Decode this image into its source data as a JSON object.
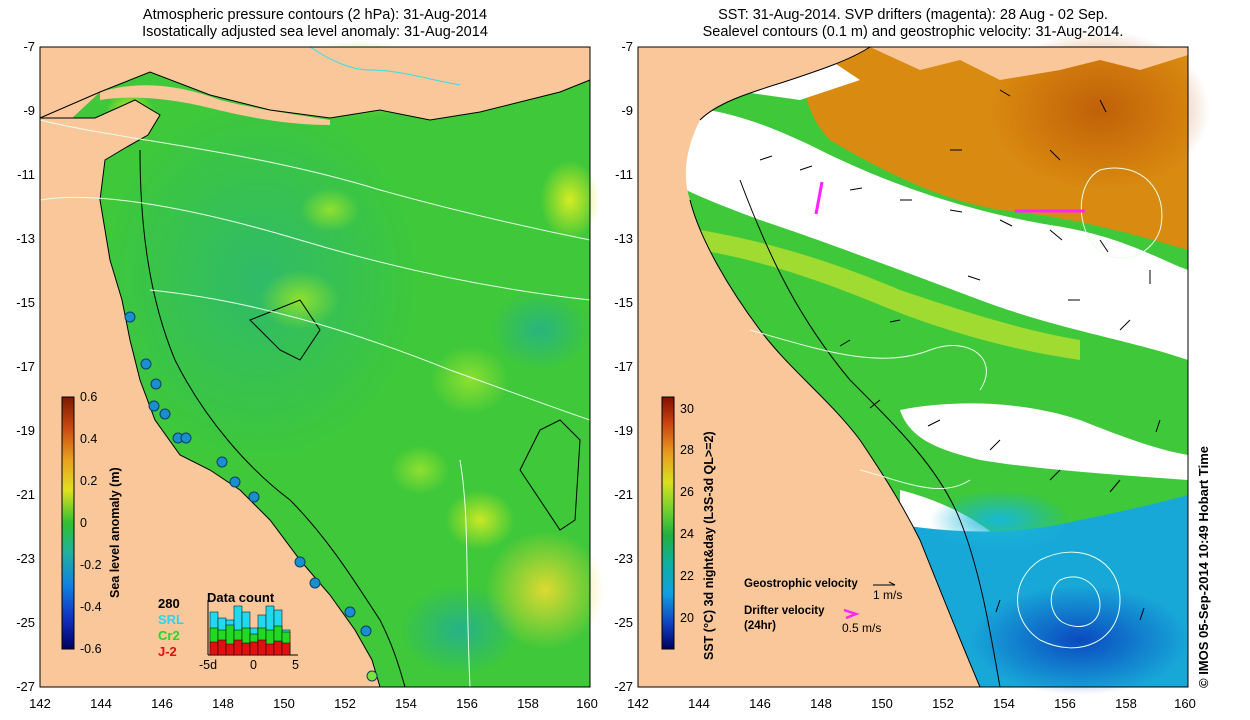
{
  "left_panel": {
    "title_line1": "Atmospheric pressure contours (2 hPa): 31-Aug-2014",
    "title_line2": "Isostatically adjusted sea level anomaly: 31-Aug-2014",
    "y_ticks": [
      "-7",
      "-9",
      "-11",
      "-13",
      "-15",
      "-17",
      "-19",
      "-21",
      "-23",
      "-25",
      "-27"
    ],
    "x_ticks": [
      "142",
      "144",
      "146",
      "148",
      "150",
      "152",
      "154",
      "156",
      "158",
      "160"
    ],
    "colorbar": {
      "title": "Sea level anomaly (m)",
      "ticks": [
        "0.6",
        "0.4",
        "0.2",
        "0",
        "-0.2",
        "-0.4",
        "-0.6"
      ]
    },
    "data_count": {
      "title": "Data count",
      "number": "280",
      "sources": [
        {
          "label": "SRL",
          "color": "#22d8f0"
        },
        {
          "label": "Cr2",
          "color": "#22d822"
        },
        {
          "label": "J-2",
          "color": "#e01010"
        }
      ],
      "x_ticks": [
        "-5d",
        "0",
        "5"
      ]
    }
  },
  "right_panel": {
    "title_line1": "SST: 31-Aug-2014. SVP drifters (magenta): 28 Aug - 02 Sep.",
    "title_line2": "Sealevel contours (0.1 m) and geostrophic velocity: 31-Aug-2014.",
    "y_ticks": [
      "-7",
      "-9",
      "-11",
      "-13",
      "-15",
      "-17",
      "-19",
      "-21",
      "-23",
      "-25",
      "-27"
    ],
    "x_ticks": [
      "142",
      "144",
      "146",
      "148",
      "150",
      "152",
      "154",
      "156",
      "158",
      "160"
    ],
    "colorbar": {
      "title": "SST (°C) 3d night&day (L3S-3d QL>=2)",
      "ticks": [
        "30",
        "28",
        "26",
        "24",
        "22",
        "20"
      ]
    },
    "legend": {
      "geo_label": "Geostrophic velocity",
      "geo_scale": "1 m/s",
      "drifter_label": "Drifter velocity",
      "drifter_sub": "(24hr)",
      "drifter_scale": "0.5 m/s"
    }
  },
  "credit": "© IMOS 05-Sep-2014 10:49 Hobart Time",
  "colors": {
    "land": "#f9c79a",
    "sla_base": "#3ec83a",
    "sst_cold": "#0a5fd0",
    "sst_warm": "#d87a0a",
    "drifter": "#ff22ff"
  }
}
